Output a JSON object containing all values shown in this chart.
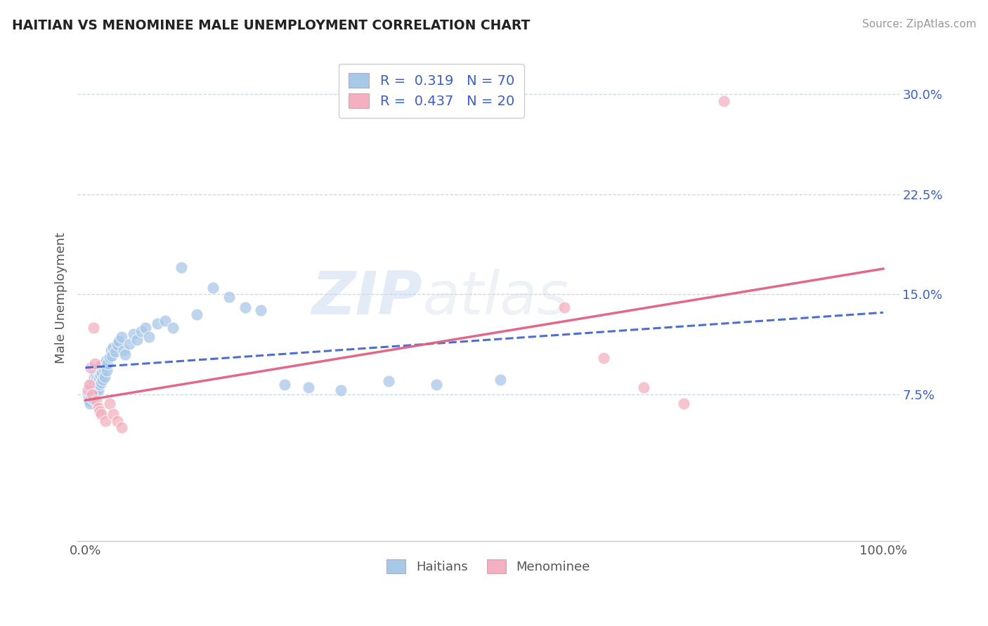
{
  "title": "HAITIAN VS MENOMINEE MALE UNEMPLOYMENT CORRELATION CHART",
  "source": "Source: ZipAtlas.com",
  "ylabel": "Male Unemployment",
  "watermark_zip": "ZIP",
  "watermark_atlas": "atlas",
  "xlim": [
    -0.01,
    1.02
  ],
  "ylim": [
    -0.035,
    0.33
  ],
  "yticks": [
    0.075,
    0.15,
    0.225,
    0.3
  ],
  "ytick_labels": [
    "7.5%",
    "15.0%",
    "22.5%",
    "30.0%"
  ],
  "xtick_labels": [
    "0.0%",
    "100.0%"
  ],
  "legend_r1": "R =  0.319",
  "legend_n1": "N = 70",
  "legend_r2": "R =  0.437",
  "legend_n2": "N = 20",
  "blue_color": "#a8c8e8",
  "pink_color": "#f4b0c0",
  "blue_line_color": "#3a5fc8",
  "pink_line_color": "#e06080",
  "background_color": "#ffffff",
  "grid_color": "#c8d4e8",
  "title_color": "#222222",
  "axis_label_color": "#555555",
  "source_color": "#999999",
  "legend_value_color": "#3a5fc8",
  "haitians_x": [
    0.003,
    0.004,
    0.005,
    0.006,
    0.006,
    0.007,
    0.008,
    0.008,
    0.009,
    0.009,
    0.01,
    0.01,
    0.011,
    0.011,
    0.012,
    0.012,
    0.013,
    0.013,
    0.014,
    0.014,
    0.015,
    0.015,
    0.016,
    0.016,
    0.017,
    0.017,
    0.018,
    0.018,
    0.019,
    0.02,
    0.02,
    0.021,
    0.022,
    0.023,
    0.024,
    0.025,
    0.026,
    0.027,
    0.028,
    0.03,
    0.032,
    0.033,
    0.035,
    0.037,
    0.04,
    0.042,
    0.045,
    0.048,
    0.05,
    0.055,
    0.06,
    0.065,
    0.07,
    0.075,
    0.08,
    0.09,
    0.1,
    0.11,
    0.12,
    0.14,
    0.16,
    0.18,
    0.2,
    0.22,
    0.25,
    0.28,
    0.32,
    0.38,
    0.44,
    0.52
  ],
  "haitians_y": [
    0.075,
    0.072,
    0.07,
    0.068,
    0.08,
    0.073,
    0.076,
    0.082,
    0.078,
    0.085,
    0.071,
    0.079,
    0.083,
    0.088,
    0.076,
    0.084,
    0.077,
    0.09,
    0.081,
    0.086,
    0.079,
    0.092,
    0.085,
    0.078,
    0.093,
    0.087,
    0.082,
    0.095,
    0.089,
    0.084,
    0.097,
    0.091,
    0.086,
    0.094,
    0.088,
    0.096,
    0.1,
    0.093,
    0.098,
    0.103,
    0.108,
    0.104,
    0.11,
    0.107,
    0.112,
    0.115,
    0.118,
    0.108,
    0.105,
    0.113,
    0.12,
    0.116,
    0.122,
    0.125,
    0.118,
    0.128,
    0.13,
    0.125,
    0.17,
    0.135,
    0.155,
    0.148,
    0.14,
    0.138,
    0.082,
    0.08,
    0.078,
    0.085,
    0.082,
    0.086
  ],
  "menominee_x": [
    0.003,
    0.005,
    0.007,
    0.008,
    0.01,
    0.012,
    0.014,
    0.016,
    0.018,
    0.02,
    0.025,
    0.03,
    0.035,
    0.04,
    0.045,
    0.6,
    0.65,
    0.7,
    0.75,
    0.8
  ],
  "menominee_y": [
    0.078,
    0.082,
    0.095,
    0.075,
    0.125,
    0.098,
    0.07,
    0.065,
    0.062,
    0.06,
    0.055,
    0.068,
    0.06,
    0.055,
    0.05,
    0.14,
    0.102,
    0.08,
    0.068,
    0.295
  ]
}
